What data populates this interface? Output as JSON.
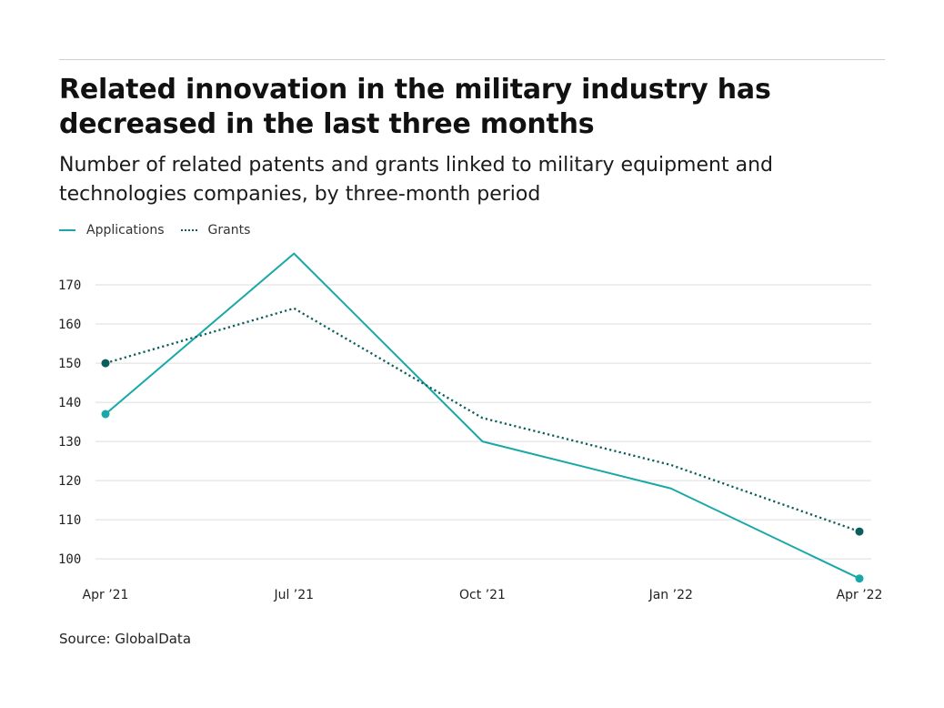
{
  "header": {
    "title": "Related innovation in the military industry has decreased in the last three months",
    "subtitle": "Number of related patents and grants linked to military equipment and technologies companies, by three-month period"
  },
  "source": "Source: GlobalData",
  "colors": {
    "applications": "#19a8a8",
    "grants": "#0c5e5e",
    "grid": "#dddddd"
  },
  "chart_data": {
    "type": "line",
    "categories": [
      "Apr ’21",
      "Jul ’21",
      "Oct ’21",
      "Jan ’22",
      "Apr ’22"
    ],
    "series": [
      {
        "name": "Applications",
        "values": [
          137,
          178,
          130,
          118,
          95
        ],
        "style": "solid"
      },
      {
        "name": "Grants",
        "values": [
          150,
          164,
          136,
          124,
          107
        ],
        "style": "dotted"
      }
    ],
    "yticks": [
      100,
      110,
      120,
      130,
      140,
      150,
      160,
      170
    ],
    "ylim": [
      94,
      180
    ],
    "grid": true,
    "legend": "top-left"
  }
}
